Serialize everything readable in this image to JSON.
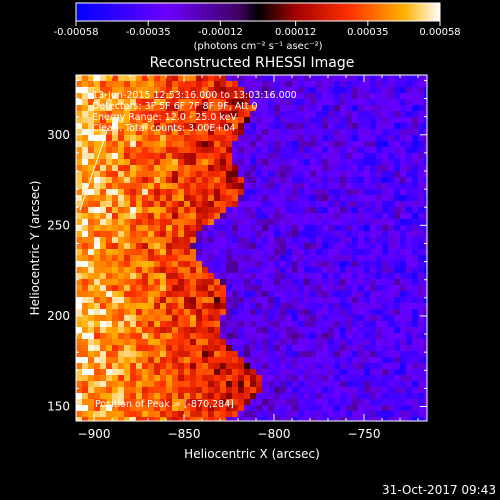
{
  "chart_data": {
    "type": "heatmap",
    "title": "Reconstructed RHESSI Image",
    "xlabel": "Heliocentric X (arcsec)",
    "ylabel": "Heliocentric Y (arcsec)",
    "xlim": [
      -910,
      -715
    ],
    "ylim": [
      142,
      333
    ],
    "xticks": [
      -900,
      -850,
      -800,
      -750
    ],
    "yticks": [
      150,
      200,
      250,
      300
    ],
    "colorbar": {
      "range": [
        -0.00058,
        0.00058
      ],
      "ticks": [
        "-0.00058",
        "-0.00035",
        "-0.00012",
        "0.00012",
        "0.00035",
        "0.00058"
      ],
      "label": "(photons cm⁻² s⁻¹ asec⁻²)",
      "colormap": "blue-purple-red-orange-yellow-white"
    },
    "annotations": [
      "13-Jun-2015 12:53:16.000 to 13:03:16.000",
      "Detectors: 3F 5F 6F 7F 8F 9F, Att 0",
      "Energy Range: 12.0 - 25.0 keV",
      "Clean. Total counts: 3.00E+04",
      "Position of Peak = [-870,284]"
    ],
    "peak": {
      "x": -870,
      "y": 284
    }
  },
  "footer": {
    "timestamp": "31-Oct-2017 09:43"
  }
}
